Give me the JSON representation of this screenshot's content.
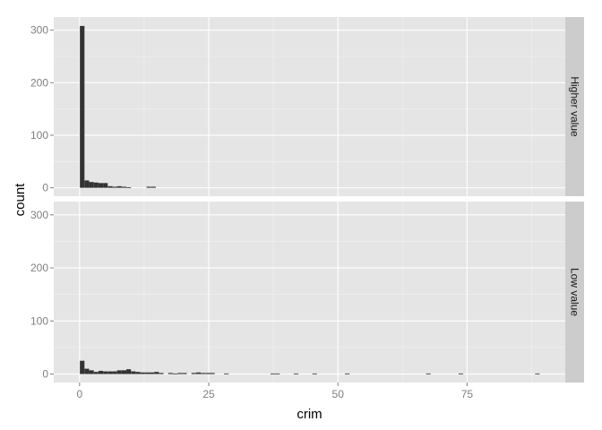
{
  "chart_data": {
    "type": "bar",
    "title": "",
    "xlabel": "crim",
    "ylabel": "count",
    "xlim": [
      -5,
      94
    ],
    "ylim": [
      -16,
      325
    ],
    "bin_width": 0.89,
    "x_ticks": [
      0,
      25,
      50,
      75
    ],
    "x_tick_labels": [
      "0",
      "25",
      "50",
      "75"
    ],
    "y_ticks": [
      0,
      100,
      200,
      300
    ],
    "y_tick_labels": [
      "0",
      "100",
      "200",
      "300"
    ],
    "grid": true,
    "legend": "none",
    "colors": {
      "panel": "#e5e5e5",
      "grid": "#ffffff",
      "bar": "#333333",
      "strip": "#cccccc"
    },
    "facets": [
      {
        "label": "Higher value",
        "bins": [
          {
            "x": 0.5,
            "count": 308
          },
          {
            "x": 1.4,
            "count": 14
          },
          {
            "x": 2.3,
            "count": 11
          },
          {
            "x": 3.2,
            "count": 10
          },
          {
            "x": 4.1,
            "count": 9
          },
          {
            "x": 5.0,
            "count": 9
          },
          {
            "x": 5.9,
            "count": 3
          },
          {
            "x": 6.8,
            "count": 2
          },
          {
            "x": 7.7,
            "count": 3
          },
          {
            "x": 8.6,
            "count": 2
          },
          {
            "x": 9.5,
            "count": 1
          },
          {
            "x": 13.4,
            "count": 2
          },
          {
            "x": 14.3,
            "count": 2
          }
        ]
      },
      {
        "label": "Low value",
        "bins": [
          {
            "x": 0.5,
            "count": 25
          },
          {
            "x": 1.4,
            "count": 10
          },
          {
            "x": 2.3,
            "count": 7
          },
          {
            "x": 3.2,
            "count": 4
          },
          {
            "x": 4.1,
            "count": 6
          },
          {
            "x": 5.0,
            "count": 5
          },
          {
            "x": 5.9,
            "count": 5
          },
          {
            "x": 6.8,
            "count": 5
          },
          {
            "x": 7.7,
            "count": 7
          },
          {
            "x": 8.6,
            "count": 7
          },
          {
            "x": 9.5,
            "count": 9
          },
          {
            "x": 10.4,
            "count": 5
          },
          {
            "x": 11.3,
            "count": 4
          },
          {
            "x": 12.2,
            "count": 3
          },
          {
            "x": 13.1,
            "count": 3
          },
          {
            "x": 14.0,
            "count": 3
          },
          {
            "x": 14.9,
            "count": 4
          },
          {
            "x": 15.8,
            "count": 2
          },
          {
            "x": 17.6,
            "count": 2
          },
          {
            "x": 18.5,
            "count": 1
          },
          {
            "x": 19.4,
            "count": 2
          },
          {
            "x": 20.3,
            "count": 2
          },
          {
            "x": 22.1,
            "count": 2
          },
          {
            "x": 23.0,
            "count": 3
          },
          {
            "x": 23.9,
            "count": 2
          },
          {
            "x": 24.8,
            "count": 2
          },
          {
            "x": 25.7,
            "count": 2
          },
          {
            "x": 28.4,
            "count": 1
          },
          {
            "x": 37.4,
            "count": 1
          },
          {
            "x": 38.3,
            "count": 1
          },
          {
            "x": 41.9,
            "count": 1
          },
          {
            "x": 45.5,
            "count": 1
          },
          {
            "x": 51.8,
            "count": 1
          },
          {
            "x": 67.5,
            "count": 1
          },
          {
            "x": 73.8,
            "count": 1
          },
          {
            "x": 88.6,
            "count": 1
          }
        ]
      }
    ]
  }
}
